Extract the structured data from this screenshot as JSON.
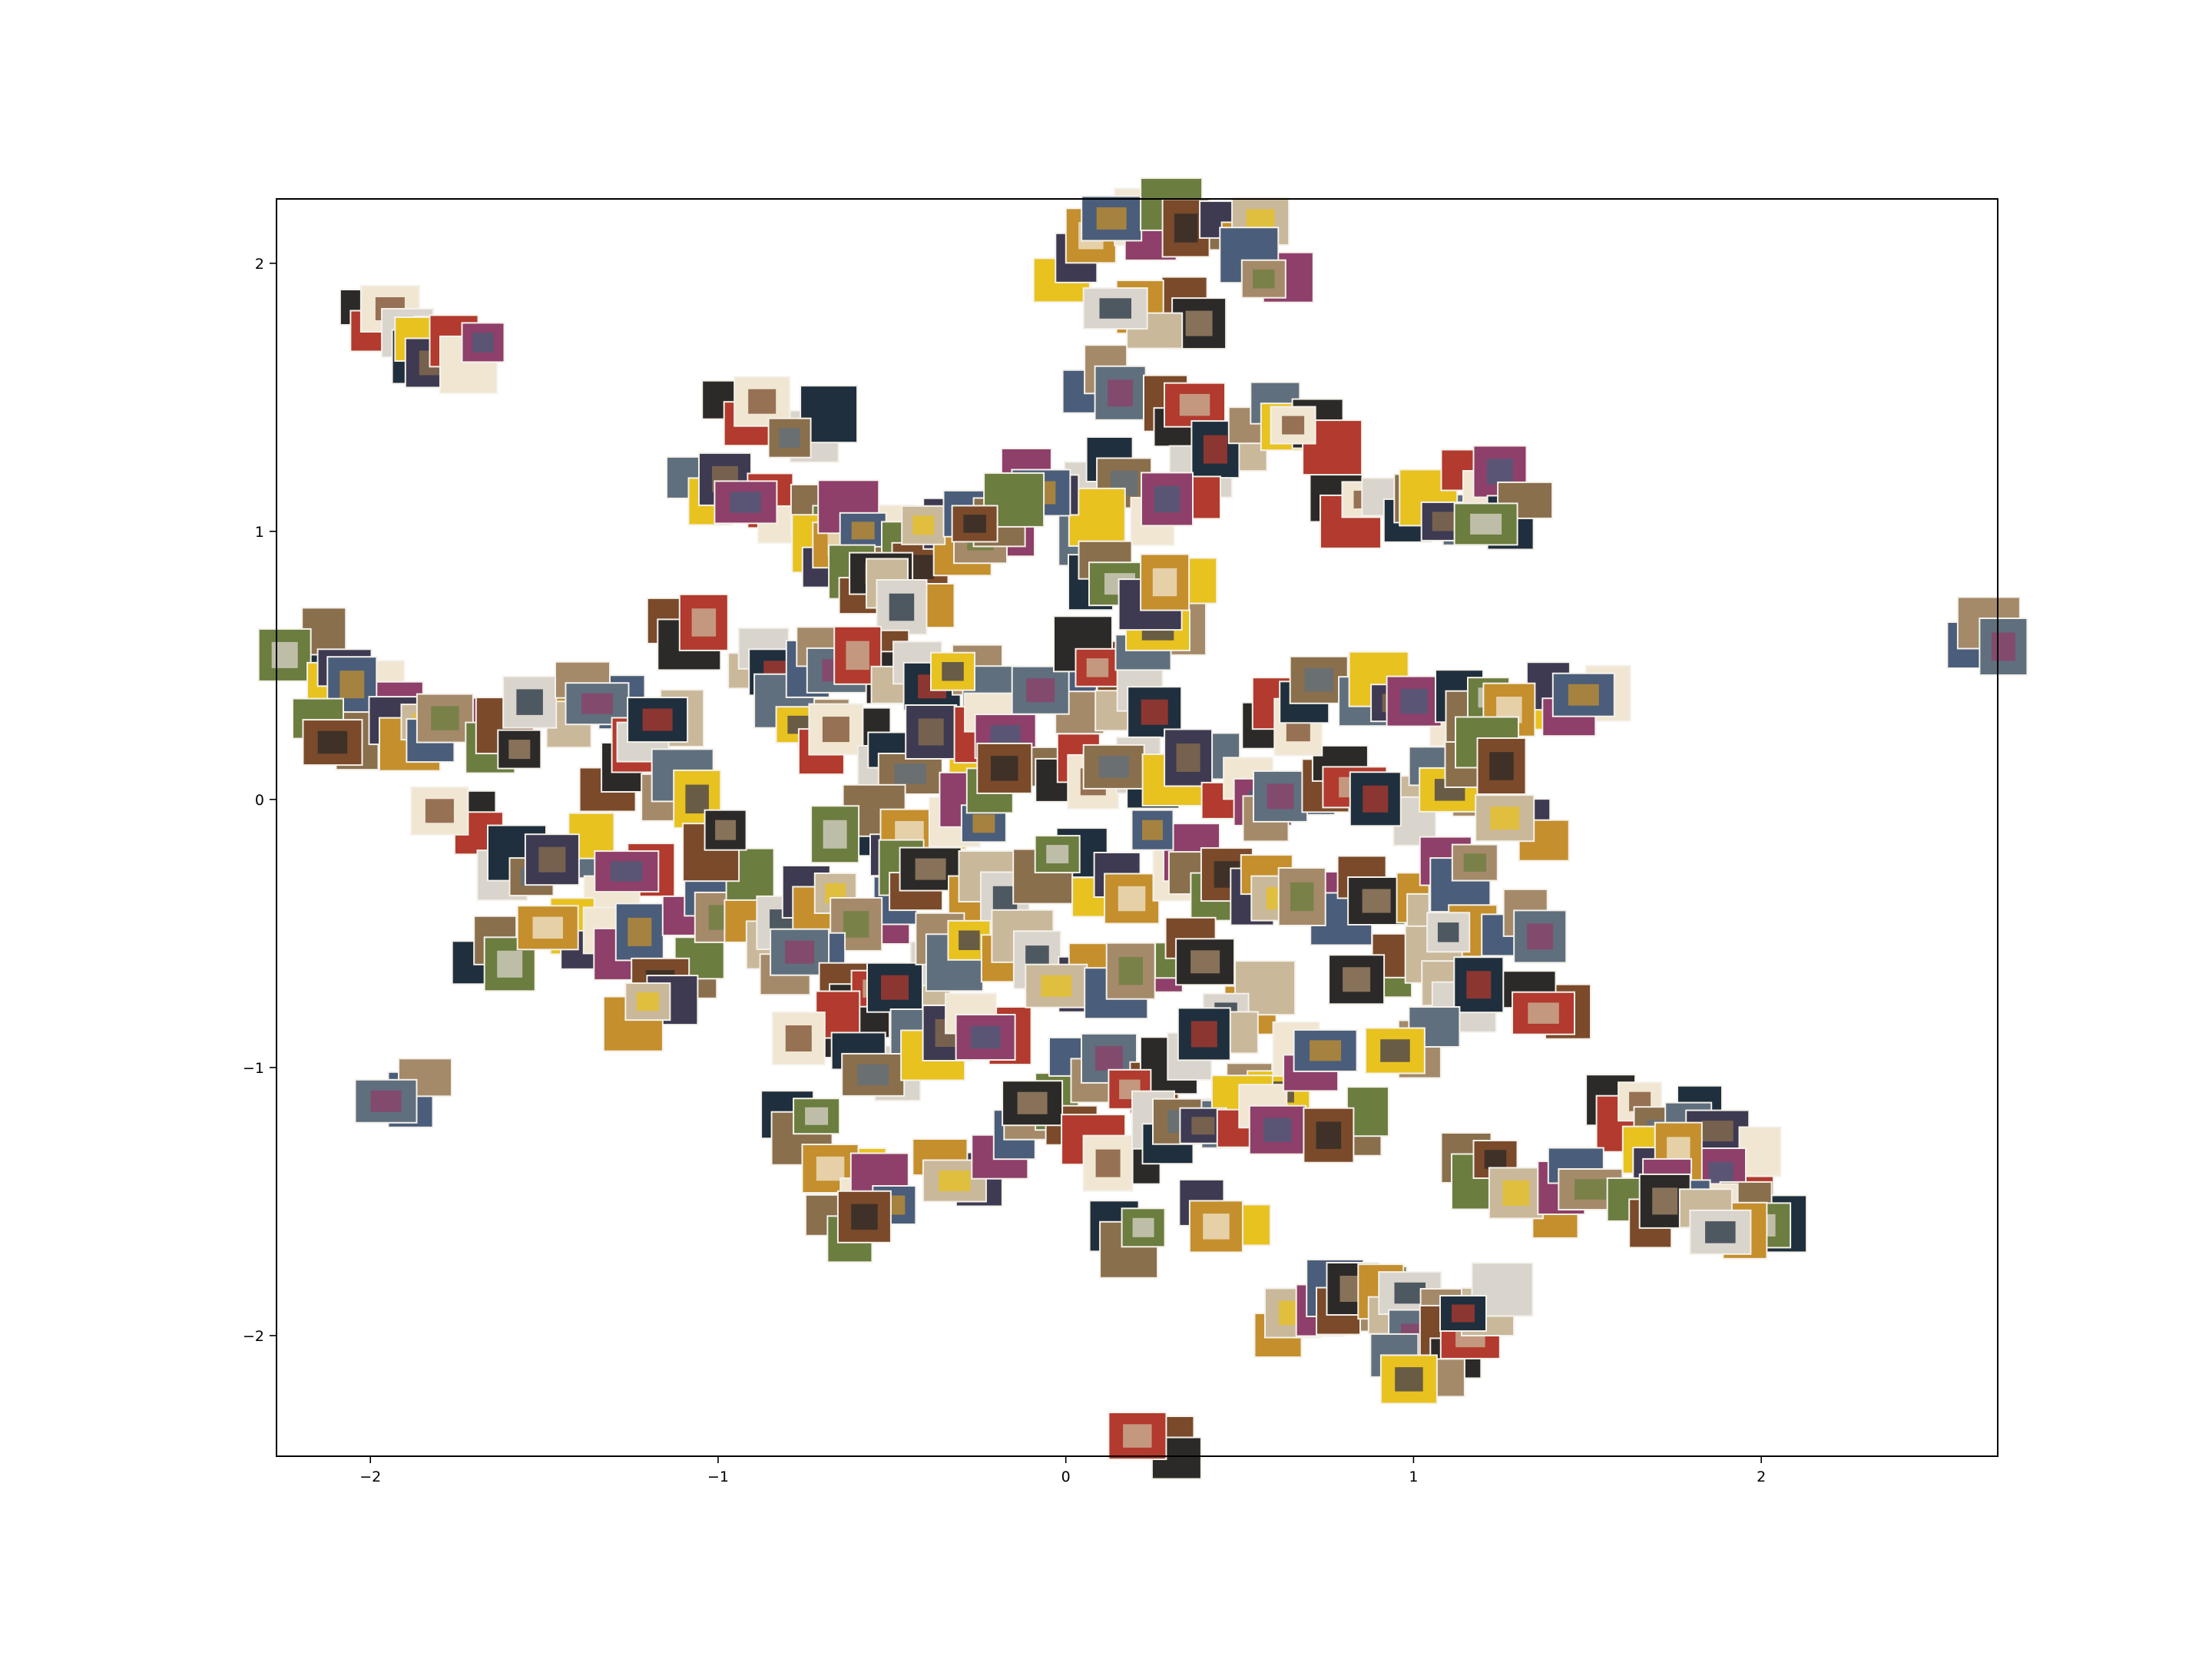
{
  "chart_data": {
    "type": "scatter",
    "title": "",
    "xlabel": "",
    "ylabel": "",
    "xlim": [
      -2.27,
      2.68
    ],
    "ylim": [
      -2.45,
      2.24
    ],
    "xticks": [
      -2,
      -1,
      0,
      1,
      2
    ],
    "yticks": [
      -2,
      -1,
      0,
      1,
      2
    ],
    "xtick_labels": [
      "−2",
      "−1",
      "0",
      "1",
      "2"
    ],
    "ytick_labels": [
      "−2",
      "−1",
      "0",
      "1",
      "2"
    ],
    "grid": false,
    "markers": "image thumbnails",
    "points": [
      {
        "x": -1.95,
        "y": 1.75
      },
      {
        "x": -1.88,
        "y": 1.72
      },
      {
        "x": -1.8,
        "y": 1.68
      },
      {
        "x": -1.72,
        "y": 1.65
      },
      {
        "x": -2.2,
        "y": 0.55
      },
      {
        "x": -2.05,
        "y": 0.48
      },
      {
        "x": -1.98,
        "y": 0.4
      },
      {
        "x": -2.1,
        "y": 0.25
      },
      {
        "x": -1.9,
        "y": 0.22
      },
      {
        "x": -1.75,
        "y": 0.3
      },
      {
        "x": -1.6,
        "y": 0.25
      },
      {
        "x": -1.48,
        "y": 0.32
      },
      {
        "x": -1.35,
        "y": 0.38
      },
      {
        "x": -1.3,
        "y": 0.12
      },
      {
        "x": -1.15,
        "y": 0.28
      },
      {
        "x": -1.1,
        "y": 0.05
      },
      {
        "x": -1.75,
        "y": -0.1
      },
      {
        "x": -1.55,
        "y": -0.28
      },
      {
        "x": -1.4,
        "y": -0.15
      },
      {
        "x": -1.25,
        "y": -0.3
      },
      {
        "x": -1.65,
        "y": -0.58
      },
      {
        "x": -1.45,
        "y": -0.55
      },
      {
        "x": -1.25,
        "y": -0.5
      },
      {
        "x": -1.1,
        "y": -0.62
      },
      {
        "x": -1.2,
        "y": -0.8
      },
      {
        "x": -1.05,
        "y": -0.42
      },
      {
        "x": -0.95,
        "y": -0.2
      },
      {
        "x": -0.85,
        "y": -0.48
      },
      {
        "x": -1.9,
        "y": -1.08
      },
      {
        "x": -1.05,
        "y": 0.6
      },
      {
        "x": -0.9,
        "y": 0.48
      },
      {
        "x": -0.75,
        "y": 0.35
      },
      {
        "x": -0.92,
        "y": 1.45
      },
      {
        "x": -0.75,
        "y": 1.38
      },
      {
        "x": -1.0,
        "y": 1.12
      },
      {
        "x": -0.85,
        "y": 1.1
      },
      {
        "x": -0.65,
        "y": 1.05
      },
      {
        "x": -0.7,
        "y": 0.9
      },
      {
        "x": -0.55,
        "y": 1.02
      },
      {
        "x": -0.45,
        "y": 0.95
      },
      {
        "x": -0.35,
        "y": 1.0
      },
      {
        "x": -0.25,
        "y": 1.02
      },
      {
        "x": -0.6,
        "y": 0.78
      },
      {
        "x": -0.45,
        "y": 0.72
      },
      {
        "x": -0.7,
        "y": 0.55
      },
      {
        "x": -0.55,
        "y": 0.5
      },
      {
        "x": -0.4,
        "y": 0.45
      },
      {
        "x": -0.25,
        "y": 0.4
      },
      {
        "x": -0.65,
        "y": 0.25
      },
      {
        "x": -0.5,
        "y": 0.15
      },
      {
        "x": -0.35,
        "y": 0.2
      },
      {
        "x": -0.2,
        "y": 0.25
      },
      {
        "x": -0.6,
        "y": -0.05
      },
      {
        "x": -0.45,
        "y": -0.15
      },
      {
        "x": -0.3,
        "y": -0.05
      },
      {
        "x": -0.15,
        "y": 0.05
      },
      {
        "x": -0.7,
        "y": -0.35
      },
      {
        "x": -0.55,
        "y": -0.4
      },
      {
        "x": -0.4,
        "y": -0.3
      },
      {
        "x": -0.25,
        "y": -0.35
      },
      {
        "x": -0.75,
        "y": -0.65
      },
      {
        "x": -0.6,
        "y": -0.72
      },
      {
        "x": -0.45,
        "y": -0.65
      },
      {
        "x": -0.3,
        "y": -0.58
      },
      {
        "x": -0.7,
        "y": -0.88
      },
      {
        "x": -0.55,
        "y": -0.95
      },
      {
        "x": -0.4,
        "y": -0.9
      },
      {
        "x": -0.2,
        "y": -0.85
      },
      {
        "x": -0.75,
        "y": -1.25
      },
      {
        "x": -0.62,
        "y": -1.38
      },
      {
        "x": -0.5,
        "y": -1.45
      },
      {
        "x": -0.65,
        "y": -1.6
      },
      {
        "x": -0.3,
        "y": -1.4
      },
      {
        "x": -0.15,
        "y": -1.25
      },
      {
        "x": -0.05,
        "y": -1.15
      },
      {
        "x": -0.1,
        "y": -0.55
      },
      {
        "x": 0.0,
        "y": 0.35
      },
      {
        "x": 0.1,
        "y": 0.5
      },
      {
        "x": 0.2,
        "y": 0.4
      },
      {
        "x": 0.3,
        "y": 0.6
      },
      {
        "x": 0.05,
        "y": 0.1
      },
      {
        "x": 0.2,
        "y": 0.05
      },
      {
        "x": 0.35,
        "y": 0.15
      },
      {
        "x": 0.5,
        "y": 0.05
      },
      {
        "x": 0.0,
        "y": -0.25
      },
      {
        "x": 0.15,
        "y": -0.35
      },
      {
        "x": 0.3,
        "y": -0.2
      },
      {
        "x": 0.45,
        "y": -0.3
      },
      {
        "x": 0.05,
        "y": -0.65
      },
      {
        "x": 0.2,
        "y": -0.7
      },
      {
        "x": 0.35,
        "y": -0.6
      },
      {
        "x": 0.5,
        "y": -0.72
      },
      {
        "x": 0.1,
        "y": -1.0
      },
      {
        "x": 0.25,
        "y": -1.05
      },
      {
        "x": 0.4,
        "y": -0.95
      },
      {
        "x": 0.55,
        "y": -1.1
      },
      {
        "x": 0.15,
        "y": -1.3
      },
      {
        "x": 0.3,
        "y": -1.25
      },
      {
        "x": 0.45,
        "y": -1.2
      },
      {
        "x": 0.6,
        "y": -1.15
      },
      {
        "x": 0.15,
        "y": -1.62
      },
      {
        "x": 0.45,
        "y": -1.55
      },
      {
        "x": 0.7,
        "y": -1.0
      },
      {
        "x": 0.8,
        "y": -1.25
      },
      {
        "x": 0.6,
        "y": -0.3
      },
      {
        "x": 0.75,
        "y": -0.4
      },
      {
        "x": 0.9,
        "y": -0.35
      },
      {
        "x": 1.05,
        "y": -0.45
      },
      {
        "x": 0.65,
        "y": 0.0
      },
      {
        "x": 0.8,
        "y": 0.1
      },
      {
        "x": 0.95,
        "y": -0.05
      },
      {
        "x": 1.1,
        "y": 0.05
      },
      {
        "x": 0.6,
        "y": 0.35
      },
      {
        "x": 0.75,
        "y": 0.42
      },
      {
        "x": 0.9,
        "y": 0.4
      },
      {
        "x": 1.05,
        "y": 0.3
      },
      {
        "x": 1.2,
        "y": 0.38
      },
      {
        "x": 1.35,
        "y": 0.4
      },
      {
        "x": 1.5,
        "y": 0.35
      },
      {
        "x": 1.2,
        "y": 0.15
      },
      {
        "x": 1.3,
        "y": -0.15
      },
      {
        "x": 1.15,
        "y": -0.25
      },
      {
        "x": 0.9,
        "y": -0.62
      },
      {
        "x": 1.1,
        "y": -0.55
      },
      {
        "x": 1.3,
        "y": -0.5
      },
      {
        "x": 1.4,
        "y": -0.72
      },
      {
        "x": 1.15,
        "y": -0.72
      },
      {
        "x": 1.0,
        "y": -0.9
      },
      {
        "x": 0.85,
        "y": 1.05
      },
      {
        "x": 0.95,
        "y": 1.12
      },
      {
        "x": 1.1,
        "y": 1.1
      },
      {
        "x": 1.2,
        "y": 1.18
      },
      {
        "x": 1.25,
        "y": 1.05
      },
      {
        "x": 0.05,
        "y": 2.02
      },
      {
        "x": 0.2,
        "y": 2.15
      },
      {
        "x": 0.35,
        "y": 2.18
      },
      {
        "x": 0.5,
        "y": 2.1
      },
      {
        "x": 0.6,
        "y": 1.95
      },
      {
        "x": 0.35,
        "y": 1.85
      },
      {
        "x": 0.2,
        "y": 1.8
      },
      {
        "x": 0.15,
        "y": 1.55
      },
      {
        "x": 0.3,
        "y": 1.4
      },
      {
        "x": 0.45,
        "y": 1.3
      },
      {
        "x": 0.6,
        "y": 1.45
      },
      {
        "x": 0.7,
        "y": 1.35
      },
      {
        "x": 0.15,
        "y": 1.2
      },
      {
        "x": 0.05,
        "y": 1.05
      },
      {
        "x": 0.3,
        "y": 1.1
      },
      {
        "x": 0.1,
        "y": 0.85
      },
      {
        "x": 0.32,
        "y": 0.75
      },
      {
        "x": -0.1,
        "y": 1.15
      },
      {
        "x": -0.2,
        "y": 1.1
      },
      {
        "x": 0.65,
        "y": -1.95
      },
      {
        "x": 0.75,
        "y": -1.88
      },
      {
        "x": 0.85,
        "y": -1.9
      },
      {
        "x": 0.95,
        "y": -1.85
      },
      {
        "x": 1.05,
        "y": -1.95
      },
      {
        "x": 1.15,
        "y": -2.05
      },
      {
        "x": 1.22,
        "y": -1.9
      },
      {
        "x": 1.0,
        "y": -2.08
      },
      {
        "x": 1.6,
        "y": -1.15
      },
      {
        "x": 1.75,
        "y": -1.2
      },
      {
        "x": 1.85,
        "y": -1.3
      },
      {
        "x": 1.95,
        "y": -1.4
      },
      {
        "x": 2.0,
        "y": -1.52
      },
      {
        "x": 1.7,
        "y": -1.35
      },
      {
        "x": 1.8,
        "y": -1.48
      },
      {
        "x": 1.2,
        "y": -1.42
      },
      {
        "x": 1.35,
        "y": -1.48
      },
      {
        "x": 1.5,
        "y": -1.4
      },
      {
        "x": 1.65,
        "y": -1.55
      },
      {
        "x": 1.9,
        "y": -1.6
      },
      {
        "x": 2.65,
        "y": 0.65
      },
      {
        "x": 0.25,
        "y": -2.4
      }
    ]
  },
  "thumbnail_colors": [
    "#2c2a28",
    "#8a6f4d",
    "#c9b89a",
    "#e8c21f",
    "#4a5d7a",
    "#b23a2e",
    "#6b7d3f",
    "#d9d4cc",
    "#3e3a52",
    "#a58a6a",
    "#f0e6d2",
    "#7a4a2a",
    "#1f2f3d",
    "#c48f2c",
    "#5f6f7e",
    "#8e3f6a"
  ],
  "frame_color": "#000000"
}
